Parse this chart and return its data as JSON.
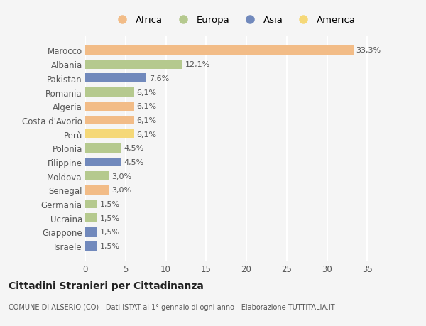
{
  "countries": [
    "Marocco",
    "Albania",
    "Pakistan",
    "Romania",
    "Algeria",
    "Costa d'Avorio",
    "Perù",
    "Polonia",
    "Filippine",
    "Moldova",
    "Senegal",
    "Germania",
    "Ucraina",
    "Giappone",
    "Israele"
  ],
  "values": [
    33.3,
    12.1,
    7.6,
    6.1,
    6.1,
    6.1,
    6.1,
    4.5,
    4.5,
    3.0,
    3.0,
    1.5,
    1.5,
    1.5,
    1.5
  ],
  "labels": [
    "33,3%",
    "12,1%",
    "7,6%",
    "6,1%",
    "6,1%",
    "6,1%",
    "6,1%",
    "4,5%",
    "4,5%",
    "3,0%",
    "3,0%",
    "1,5%",
    "1,5%",
    "1,5%",
    "1,5%"
  ],
  "continents": [
    "Africa",
    "Europa",
    "Asia",
    "Europa",
    "Africa",
    "Africa",
    "America",
    "Europa",
    "Asia",
    "Europa",
    "Africa",
    "Europa",
    "Europa",
    "Asia",
    "Asia"
  ],
  "colors": {
    "Africa": "#F2BC87",
    "Europa": "#B5C98E",
    "Asia": "#7189BC",
    "America": "#F5D878"
  },
  "legend_order": [
    "Africa",
    "Europa",
    "Asia",
    "America"
  ],
  "background_color": "#f5f5f5",
  "grid_color": "#ffffff",
  "title": "Cittadini Stranieri per Cittadinanza",
  "subtitle": "COMUNE DI ALSERIO (CO) - Dati ISTAT al 1° gennaio di ogni anno - Elaborazione TUTTITALIA.IT",
  "xlim": [
    0,
    37
  ],
  "xticks": [
    0,
    5,
    10,
    15,
    20,
    25,
    30,
    35
  ],
  "label_fontsize": 8,
  "ytick_fontsize": 8.5,
  "xtick_fontsize": 8.5,
  "bar_height": 0.65
}
